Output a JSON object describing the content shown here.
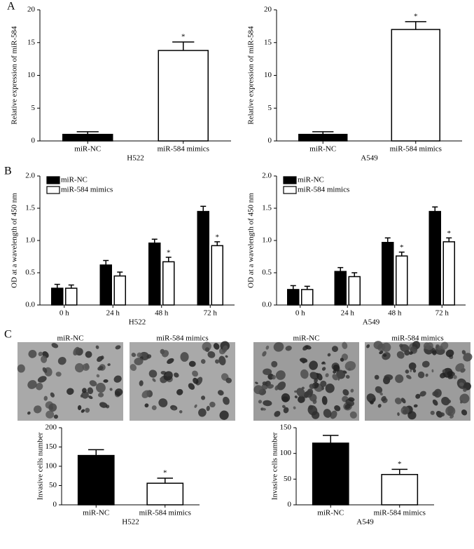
{
  "panels": [
    "A",
    "B",
    "C"
  ],
  "micrograph_labels": [
    "miR-NC",
    "miR-584 mimics",
    "miR-NC",
    "miR-584 mimics"
  ],
  "chart_data": [
    {
      "type": "bar",
      "ylabel": "Relative expression of miR-584",
      "xlabel": "H522",
      "categories": [
        "miR-NC",
        "miR-584 mimics"
      ],
      "values": [
        1.0,
        13.8
      ],
      "errors": [
        0.4,
        1.3
      ],
      "significance": [
        null,
        "*"
      ],
      "colors": [
        "#000000",
        "#ffffff"
      ],
      "ylim": [
        0,
        20
      ],
      "yticks": [
        0,
        5,
        10,
        15,
        20
      ]
    },
    {
      "type": "bar",
      "ylabel": "Relative expression of miR-584",
      "xlabel": "A549",
      "categories": [
        "miR-NC",
        "miR-584 mimics"
      ],
      "values": [
        1.0,
        17.0
      ],
      "errors": [
        0.4,
        1.2
      ],
      "significance": [
        null,
        "*"
      ],
      "colors": [
        "#000000",
        "#ffffff"
      ],
      "ylim": [
        0,
        20
      ],
      "yticks": [
        0,
        5,
        10,
        15,
        20
      ]
    },
    {
      "type": "grouped_bar",
      "ylabel": "OD at a wavelength of 450 nm",
      "xlabel": "H522",
      "categories": [
        "0 h",
        "24 h",
        "48 h",
        "72 h"
      ],
      "legend": "upper left",
      "series": [
        {
          "name": "miR-NC",
          "color": "#000000",
          "values": [
            0.26,
            0.62,
            0.96,
            1.45
          ],
          "errors": [
            0.06,
            0.07,
            0.06,
            0.08
          ],
          "significance": [
            null,
            null,
            null,
            null
          ]
        },
        {
          "name": "miR-584 mimics",
          "color": "#ffffff",
          "values": [
            0.26,
            0.45,
            0.67,
            0.92
          ],
          "errors": [
            0.05,
            0.06,
            0.07,
            0.06
          ],
          "significance": [
            null,
            null,
            "*",
            "*"
          ]
        }
      ],
      "ylim": [
        0,
        2.0
      ],
      "yticks": [
        {
          "value": 0,
          "label": "0.0"
        },
        {
          "value": 0.5,
          "label": "0.5"
        },
        {
          "value": 1.0,
          "label": "1.0"
        },
        {
          "value": 1.5,
          "label": "1.5"
        },
        {
          "value": 2.0,
          "label": "2.0"
        }
      ]
    },
    {
      "type": "grouped_bar",
      "ylabel": "OD at a wavelength of 450 nm",
      "xlabel": "A549",
      "categories": [
        "0 h",
        "24 h",
        "48 h",
        "72 h"
      ],
      "legend": "upper left",
      "series": [
        {
          "name": "miR-NC",
          "color": "#000000",
          "values": [
            0.24,
            0.52,
            0.97,
            1.45
          ],
          "errors": [
            0.06,
            0.06,
            0.07,
            0.07
          ],
          "significance": [
            null,
            null,
            null,
            null
          ]
        },
        {
          "name": "miR-584 mimics",
          "color": "#ffffff",
          "values": [
            0.24,
            0.44,
            0.76,
            0.98
          ],
          "errors": [
            0.05,
            0.06,
            0.06,
            0.06
          ],
          "significance": [
            null,
            null,
            "*",
            "*"
          ]
        }
      ],
      "ylim": [
        0,
        2.0
      ],
      "yticks": [
        {
          "value": 0,
          "label": "0.0"
        },
        {
          "value": 0.5,
          "label": "0.5"
        },
        {
          "value": 1.0,
          "label": "1.0"
        },
        {
          "value": 1.5,
          "label": "1.5"
        },
        {
          "value": 2.0,
          "label": "2.0"
        }
      ]
    },
    {
      "type": "bar",
      "ylabel": "Invasive cells number",
      "xlabel": "H522",
      "categories": [
        "miR-NC",
        "miR-584 mimics"
      ],
      "values": [
        128,
        56
      ],
      "errors": [
        15,
        13
      ],
      "significance": [
        null,
        "*"
      ],
      "colors": [
        "#000000",
        "#ffffff"
      ],
      "ylim": [
        0,
        200
      ],
      "yticks": [
        0,
        50,
        100,
        150,
        200
      ]
    },
    {
      "type": "bar",
      "ylabel": "Invasive cells number",
      "xlabel": "A549",
      "categories": [
        "miR-NC",
        "miR-584 mimics"
      ],
      "values": [
        120,
        59
      ],
      "errors": [
        15,
        10
      ],
      "significance": [
        null,
        "*"
      ],
      "colors": [
        "#000000",
        "#ffffff"
      ],
      "ylim": [
        0,
        150
      ],
      "yticks": [
        0,
        50,
        100,
        150
      ]
    }
  ]
}
